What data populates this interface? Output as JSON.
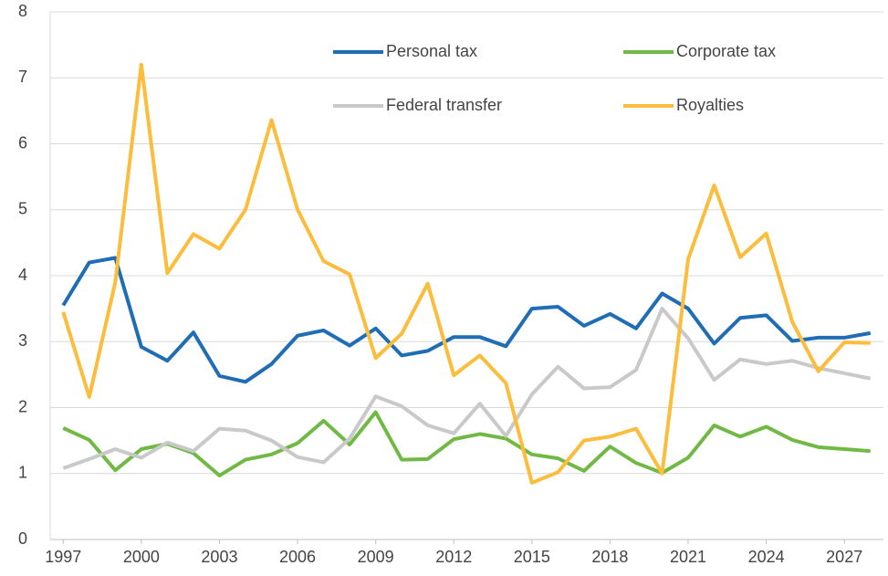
{
  "chart_data": {
    "type": "line",
    "x": [
      1997,
      1998,
      1999,
      2000,
      2001,
      2002,
      2003,
      2004,
      2005,
      2006,
      2007,
      2008,
      2009,
      2010,
      2011,
      2012,
      2013,
      2014,
      2015,
      2016,
      2017,
      2018,
      2019,
      2020,
      2021,
      2022,
      2023,
      2024,
      2025,
      2026,
      2027,
      2028
    ],
    "xlim": [
      1996.5,
      2028.5
    ],
    "xticks": [
      1997,
      2000,
      2003,
      2006,
      2009,
      2012,
      2015,
      2018,
      2021,
      2024,
      2027
    ],
    "ylim": [
      0,
      8
    ],
    "yticks": [
      0,
      1,
      2,
      3,
      4,
      5,
      6,
      7,
      8
    ],
    "grid": true,
    "series": [
      {
        "name": "Personal tax",
        "color": "#1f6db5",
        "values": [
          3.55,
          4.2,
          4.27,
          2.92,
          2.71,
          3.14,
          2.48,
          2.39,
          2.66,
          3.09,
          3.17,
          2.94,
          3.2,
          2.79,
          2.86,
          3.07,
          3.07,
          2.93,
          3.5,
          3.53,
          3.24,
          3.42,
          3.2,
          3.73,
          3.5,
          2.97,
          3.36,
          3.4,
          3.01,
          3.06,
          3.06,
          3.13
        ]
      },
      {
        "name": "Corporate tax",
        "color": "#70b944",
        "values": [
          1.69,
          1.51,
          1.05,
          1.37,
          1.45,
          1.31,
          0.97,
          1.21,
          1.29,
          1.46,
          1.8,
          1.44,
          1.93,
          1.21,
          1.22,
          1.52,
          1.6,
          1.53,
          1.29,
          1.23,
          1.04,
          1.41,
          1.16,
          1.01,
          1.24,
          1.73,
          1.56,
          1.71,
          1.51,
          1.4,
          1.37,
          1.34
        ]
      },
      {
        "name": "Federal transfer",
        "color": "#c9c9c9",
        "values": [
          1.08,
          1.22,
          1.37,
          1.24,
          1.47,
          1.34,
          1.68,
          1.65,
          1.5,
          1.25,
          1.17,
          1.53,
          2.17,
          2.02,
          1.73,
          1.61,
          2.06,
          1.57,
          2.2,
          2.62,
          2.29,
          2.31,
          2.57,
          3.5,
          3.05,
          2.42,
          2.73,
          2.66,
          2.71,
          2.6,
          2.52,
          2.44
        ]
      },
      {
        "name": "Royalties",
        "color": "#fbbd3b",
        "values": [
          3.45,
          2.16,
          3.9,
          7.2,
          4.04,
          4.63,
          4.41,
          5.0,
          6.36,
          5.0,
          4.22,
          4.02,
          2.75,
          3.12,
          3.88,
          2.49,
          2.79,
          2.37,
          0.86,
          1.02,
          1.5,
          1.56,
          1.68,
          1.0,
          4.25,
          5.37,
          4.28,
          4.64,
          3.3,
          2.55,
          2.99,
          2.98
        ]
      }
    ]
  }
}
